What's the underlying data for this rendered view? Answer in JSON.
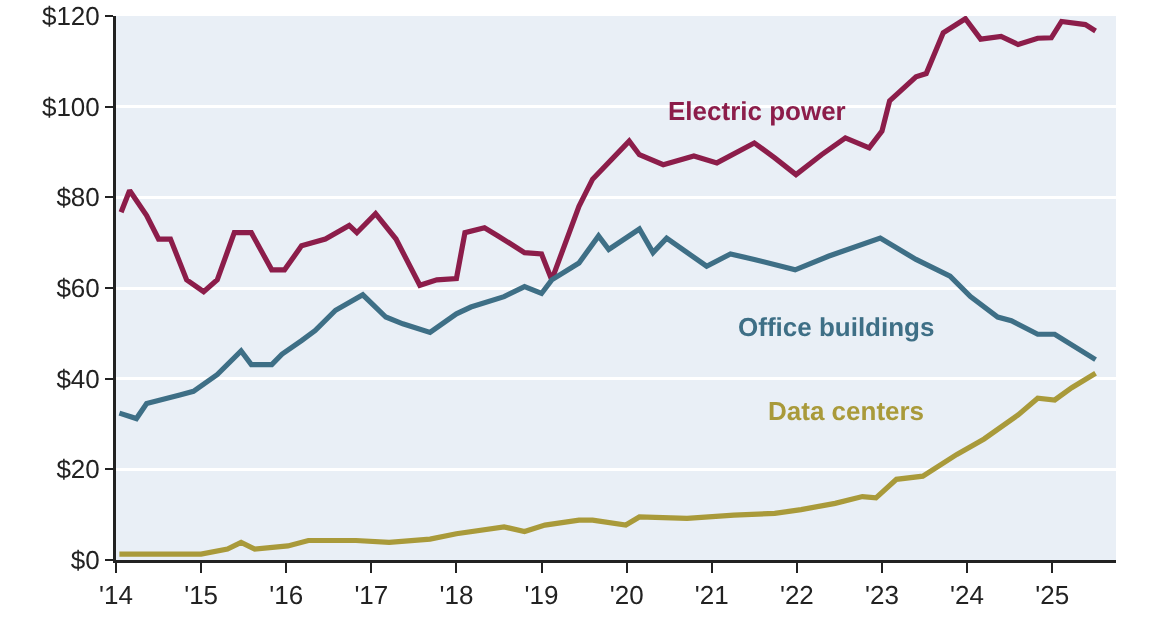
{
  "chart_data": {
    "type": "line",
    "grid": "y",
    "legend": false,
    "marker": "none",
    "line_style": "solid",
    "xlim": [
      2014,
      2025.75
    ],
    "ylim": [
      0,
      120
    ],
    "xticks": [
      {
        "value": 2014,
        "label": "'14"
      },
      {
        "value": 2015,
        "label": "'15"
      },
      {
        "value": 2016,
        "label": "'16"
      },
      {
        "value": 2017,
        "label": "'17"
      },
      {
        "value": 2018,
        "label": "'18"
      },
      {
        "value": 2019,
        "label": "'19"
      },
      {
        "value": 2020,
        "label": "'20"
      },
      {
        "value": 2021,
        "label": "'21"
      },
      {
        "value": 2022,
        "label": "'22"
      },
      {
        "value": 2023,
        "label": "'23"
      },
      {
        "value": 2024,
        "label": "'24"
      },
      {
        "value": 2025,
        "label": "'25"
      }
    ],
    "yticks": [
      {
        "value": 0,
        "label": "$0"
      },
      {
        "value": 20,
        "label": "$20"
      },
      {
        "value": 40,
        "label": "$40"
      },
      {
        "value": 60,
        "label": "$60"
      },
      {
        "value": 80,
        "label": "$80"
      },
      {
        "value": 100,
        "label": "$100"
      },
      {
        "value": 120,
        "label": "$120"
      }
    ],
    "series": [
      {
        "name": "Electric power",
        "color": "#8c1d4a",
        "x": [
          2014.06,
          2014.16,
          2014.36,
          2014.5,
          2014.64,
          2014.83,
          2015.03,
          2015.19,
          2015.39,
          2015.59,
          2015.83,
          2015.98,
          2016.18,
          2016.46,
          2016.74,
          2016.83,
          2017.05,
          2017.29,
          2017.57,
          2017.77,
          2018.0,
          2018.1,
          2018.33,
          2018.48,
          2018.8,
          2019.0,
          2019.12,
          2019.44,
          2019.6,
          2020.03,
          2020.15,
          2020.43,
          2020.79,
          2021.06,
          2021.5,
          2021.74,
          2021.99,
          2022.29,
          2022.57,
          2022.85,
          2023.0,
          2023.09,
          2023.4,
          2023.52,
          2023.72,
          2023.98,
          2024.16,
          2024.4,
          2024.6,
          2024.83,
          2024.99,
          2025.11,
          2025.39,
          2025.51
        ],
        "values": [
          76.7,
          81.5,
          76,
          70.8,
          70.8,
          61.8,
          59.2,
          61.8,
          72.2,
          72.2,
          64,
          64,
          69.3,
          70.8,
          73.8,
          72.2,
          76.4,
          70.8,
          60.6,
          61.8,
          62.1,
          72.2,
          73.3,
          71.6,
          67.8,
          67.5,
          61.8,
          78,
          84,
          92.4,
          89.4,
          87.2,
          89.1,
          87.6,
          92,
          88.7,
          85,
          89.4,
          93.1,
          90.9,
          94.6,
          101.3,
          106.6,
          107.3,
          116.3,
          119.4,
          114.9,
          115.5,
          113.7,
          115.1,
          115.2,
          118.8,
          118.1,
          116.7
        ]
      },
      {
        "name": "Office buildings",
        "color": "#3e6f86",
        "x": [
          2014.04,
          2014.24,
          2014.36,
          2014.75,
          2014.91,
          2015.19,
          2015.47,
          2015.59,
          2015.83,
          2015.95,
          2016.18,
          2016.34,
          2016.58,
          2016.9,
          2017.17,
          2017.37,
          2017.69,
          2018.0,
          2018.17,
          2018.56,
          2018.8,
          2019.0,
          2019.12,
          2019.44,
          2019.67,
          2019.79,
          2020.15,
          2020.31,
          2020.47,
          2020.94,
          2021.22,
          2021.5,
          2021.98,
          2022.37,
          2022.98,
          2023.4,
          2023.8,
          2024.04,
          2024.36,
          2024.52,
          2024.83,
          2025.03,
          2025.51
        ],
        "values": [
          32.4,
          31.2,
          34.5,
          36.4,
          37.2,
          40.9,
          46.1,
          43.1,
          43.1,
          45.4,
          48.4,
          50.6,
          55.1,
          58.5,
          53.6,
          52.1,
          50.2,
          54.3,
          55.8,
          58.1,
          60.3,
          58.8,
          61.8,
          65.5,
          71.5,
          68.5,
          73,
          67.8,
          71,
          64.8,
          67.5,
          66.3,
          64,
          67,
          71,
          66.3,
          62.6,
          58.1,
          53.6,
          52.8,
          49.8,
          49.8,
          44.2
        ]
      },
      {
        "name": "Data centers",
        "color": "#a99a3a",
        "x": [
          2014.04,
          2015.0,
          2015.31,
          2015.47,
          2015.63,
          2016.02,
          2016.26,
          2016.82,
          2017.21,
          2017.69,
          2018.0,
          2018.56,
          2018.8,
          2019.04,
          2019.44,
          2019.6,
          2019.99,
          2020.15,
          2020.71,
          2021.26,
          2021.74,
          2022.05,
          2022.45,
          2022.77,
          2022.93,
          2023.17,
          2023.48,
          2023.88,
          2024.2,
          2024.6,
          2024.83,
          2025.03,
          2025.23,
          2025.51
        ],
        "values": [
          1.3,
          1.3,
          2.4,
          3.9,
          2.4,
          3.1,
          4.3,
          4.3,
          3.9,
          4.6,
          5.8,
          7.3,
          6.3,
          7.7,
          8.8,
          8.8,
          7.7,
          9.5,
          9.2,
          9.9,
          10.3,
          11.1,
          12.5,
          14,
          13.7,
          17.8,
          18.5,
          23.3,
          26.7,
          32,
          35.7,
          35.3,
          38,
          41.2
        ]
      }
    ]
  }
}
